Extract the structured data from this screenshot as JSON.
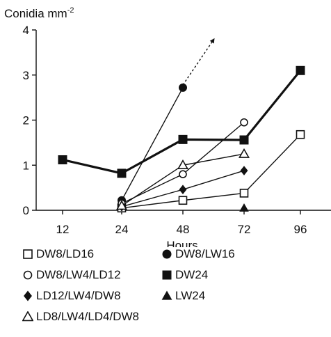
{
  "chart_data": {
    "type": "line",
    "ylabel": "Conidia mm",
    "ylabel_superscript": "-2",
    "xlabel": "Hours",
    "categories": [
      "12",
      "24",
      "48",
      "72",
      "96"
    ],
    "y_ticks": [
      "0",
      "1",
      "2",
      "3",
      "4"
    ],
    "ylim": [
      0,
      4
    ],
    "grid": false,
    "legend_position": "bottom",
    "series": [
      {
        "name": "DW8/LD16",
        "marker": "square-open",
        "line_weight": "thin",
        "dashed": false,
        "points": [
          {
            "x": "24",
            "y": 0.05
          },
          {
            "x": "48",
            "y": 0.22
          },
          {
            "x": "72",
            "y": 0.38
          },
          {
            "x": "96",
            "y": 1.68
          }
        ]
      },
      {
        "name": "DW8/LW16",
        "marker": "circle-filled",
        "line_weight": "thin",
        "dashed": false,
        "points": [
          {
            "x": "24",
            "y": 0.22
          },
          {
            "x": "48",
            "y": 2.72
          }
        ]
      },
      {
        "name": "DW8/LW16 (continuation)",
        "marker": "none",
        "line_weight": "thin",
        "dashed": true,
        "arrow": true,
        "points": [
          {
            "x": "48",
            "y": 2.78
          },
          {
            "x": "60",
            "y": 3.78
          }
        ]
      },
      {
        "name": "DW8/LW4/LD12",
        "marker": "circle-open",
        "line_weight": "thin",
        "dashed": false,
        "points": [
          {
            "x": "24",
            "y": 0.15
          },
          {
            "x": "48",
            "y": 0.8
          },
          {
            "x": "72",
            "y": 1.95
          }
        ]
      },
      {
        "name": "DW24",
        "marker": "square-filled",
        "line_weight": "thick",
        "dashed": false,
        "points": [
          {
            "x": "12",
            "y": 1.12
          },
          {
            "x": "24",
            "y": 0.82
          },
          {
            "x": "48",
            "y": 1.57
          },
          {
            "x": "72",
            "y": 1.56
          },
          {
            "x": "96",
            "y": 3.1
          }
        ]
      },
      {
        "name": "LD12/LW4/DW8",
        "marker": "diamond-filled",
        "line_weight": "thin",
        "dashed": false,
        "points": [
          {
            "x": "24",
            "y": 0.08
          },
          {
            "x": "48",
            "y": 0.46
          },
          {
            "x": "72",
            "y": 0.88
          }
        ]
      },
      {
        "name": "LW24",
        "marker": "triangle-filled",
        "line_weight": "thin",
        "dashed": false,
        "points": [
          {
            "x": "72",
            "y": 0.05
          }
        ]
      },
      {
        "name": "LD8/LW4/LD4/DW8",
        "marker": "triangle-open",
        "line_weight": "thin",
        "dashed": false,
        "points": [
          {
            "x": "24",
            "y": 0.1
          },
          {
            "x": "48",
            "y": 1.0
          },
          {
            "x": "72",
            "y": 1.25
          }
        ]
      }
    ]
  },
  "colors": {
    "ink": "#111111",
    "background": "#ffffff"
  }
}
